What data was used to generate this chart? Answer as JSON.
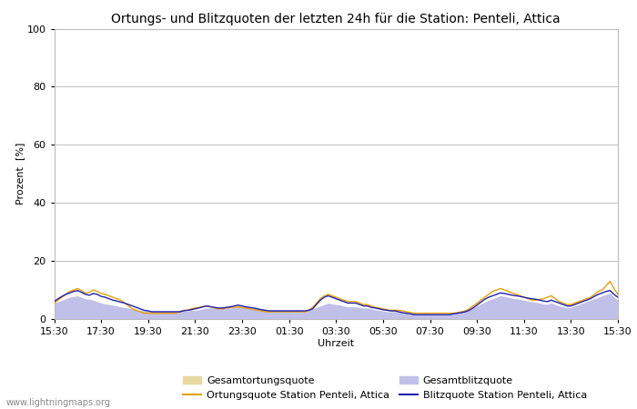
{
  "title": "Ortungs- und Blitzquoten der letzten 24h für die Station: Penteli, Attica",
  "xlabel": "Uhrzeit",
  "ylabel": "Prozent  [%]",
  "ylim": [
    0,
    100
  ],
  "yticks": [
    0,
    20,
    40,
    60,
    80,
    100
  ],
  "xtick_labels": [
    "15:30",
    "17:30",
    "19:30",
    "21:30",
    "23:30",
    "01:30",
    "03:30",
    "05:30",
    "07:30",
    "09:30",
    "11:30",
    "13:30",
    "15:30"
  ],
  "color_gesamtortung": "#e8d8a0",
  "color_ortung": "#e8a000",
  "color_gesamtblitz": "#c0c0e8",
  "color_blitz": "#2020b0",
  "legend_labels": [
    "Gesamtortungsquote",
    "Ortungsquote Station Penteli, Attica",
    "Gesamtblitzquote",
    "Blitzquote Station Penteli, Attica"
  ],
  "watermark": "www.lightningmaps.org",
  "background_color": "#ffffff",
  "plot_bg_color": "#ffffff",
  "grid_color": "#c0c0c0",
  "title_fontsize": 10,
  "label_fontsize": 8,
  "tick_fontsize": 8,
  "n_points": 145,
  "gesamtortung": [
    3.5,
    4.0,
    4.2,
    4.5,
    4.8,
    5.0,
    5.2,
    4.8,
    4.5,
    4.2,
    4.0,
    3.8,
    3.5,
    3.2,
    3.0,
    2.8,
    2.5,
    2.2,
    2.0,
    1.8,
    1.5,
    1.5,
    1.5,
    1.5,
    1.5,
    1.5,
    1.5,
    1.5,
    1.5,
    1.5,
    1.5,
    1.5,
    1.5,
    1.5,
    1.5,
    1.5,
    1.8,
    2.0,
    2.2,
    2.5,
    2.5,
    2.5,
    2.5,
    2.5,
    2.5,
    2.5,
    2.5,
    2.8,
    2.8,
    2.8,
    2.5,
    2.5,
    2.5,
    2.2,
    2.0,
    2.0,
    2.0,
    2.0,
    2.0,
    2.0,
    2.0,
    2.0,
    2.0,
    2.0,
    2.0,
    2.0,
    2.0,
    2.2,
    2.5,
    2.5,
    2.5,
    2.5,
    2.5,
    2.5,
    2.5,
    2.5,
    2.5,
    2.5,
    2.5,
    2.5,
    2.5,
    2.5,
    2.5,
    2.5,
    2.5,
    2.5,
    2.5,
    2.5,
    2.2,
    2.0,
    1.8,
    1.5,
    1.5,
    1.5,
    1.5,
    1.5,
    1.5,
    1.5,
    1.5,
    1.5,
    1.5,
    1.5,
    1.5,
    1.5,
    1.5,
    1.8,
    2.0,
    2.2,
    2.5,
    2.8,
    3.0,
    3.2,
    3.5,
    3.8,
    4.0,
    4.2,
    4.5,
    4.8,
    5.0,
    5.2,
    5.5,
    5.2,
    5.0,
    4.8,
    4.5,
    4.2,
    4.0,
    3.8,
    3.5,
    3.2,
    3.0,
    2.8,
    2.8,
    3.0,
    3.2,
    3.5,
    3.8,
    4.0,
    4.2,
    4.5,
    4.8,
    5.0,
    5.2,
    4.5,
    4.0
  ],
  "ortungsquote": [
    5.5,
    6.5,
    7.5,
    8.5,
    9.5,
    10.0,
    10.5,
    9.8,
    8.8,
    9.2,
    10.0,
    9.5,
    8.8,
    8.5,
    8.0,
    7.5,
    7.0,
    6.5,
    5.5,
    4.5,
    3.5,
    3.0,
    2.5,
    2.0,
    2.0,
    2.0,
    2.0,
    2.0,
    2.0,
    2.0,
    2.0,
    2.0,
    2.5,
    3.0,
    3.0,
    3.5,
    3.8,
    4.0,
    4.2,
    4.5,
    4.2,
    3.8,
    3.5,
    3.5,
    3.8,
    4.0,
    4.0,
    4.2,
    4.0,
    3.8,
    3.5,
    3.2,
    3.0,
    2.8,
    2.5,
    2.5,
    2.5,
    2.5,
    2.5,
    2.5,
    2.5,
    2.5,
    2.5,
    2.5,
    2.5,
    3.0,
    4.0,
    5.5,
    7.0,
    8.0,
    8.5,
    8.0,
    7.5,
    7.0,
    6.5,
    6.0,
    6.0,
    6.0,
    5.5,
    5.0,
    5.0,
    4.5,
    4.0,
    3.8,
    3.5,
    3.2,
    3.0,
    3.0,
    3.0,
    2.8,
    2.5,
    2.2,
    2.0,
    2.0,
    2.0,
    2.0,
    2.0,
    2.0,
    2.0,
    2.0,
    2.0,
    2.0,
    2.0,
    2.2,
    2.5,
    2.8,
    3.5,
    4.5,
    5.5,
    6.5,
    7.5,
    8.5,
    9.5,
    10.0,
    10.5,
    10.0,
    9.5,
    9.0,
    8.5,
    8.0,
    7.5,
    7.0,
    6.5,
    6.5,
    6.8,
    7.0,
    7.5,
    8.0,
    7.0,
    6.0,
    5.5,
    5.0,
    5.0,
    5.5,
    6.0,
    6.5,
    7.0,
    7.5,
    8.5,
    9.5,
    10.0,
    11.5,
    13.0,
    10.5,
    8.5
  ],
  "gesamtblitz": [
    5.5,
    6.0,
    6.5,
    7.0,
    7.5,
    7.8,
    8.0,
    7.5,
    7.0,
    6.8,
    6.5,
    6.0,
    5.5,
    5.2,
    5.0,
    4.8,
    4.5,
    4.2,
    4.0,
    3.8,
    3.5,
    3.2,
    3.0,
    2.8,
    2.8,
    2.8,
    2.8,
    2.8,
    2.8,
    2.8,
    2.8,
    2.8,
    2.8,
    2.8,
    2.8,
    3.0,
    3.0,
    3.2,
    3.5,
    3.8,
    3.8,
    3.8,
    3.8,
    3.8,
    3.8,
    3.8,
    4.0,
    4.2,
    4.2,
    4.0,
    3.8,
    3.8,
    3.8,
    3.5,
    3.2,
    3.2,
    3.2,
    3.2,
    3.2,
    3.2,
    3.2,
    3.2,
    3.2,
    3.2,
    3.0,
    3.2,
    3.5,
    4.0,
    4.5,
    5.0,
    5.5,
    5.2,
    5.0,
    4.8,
    4.5,
    4.2,
    4.2,
    4.2,
    4.0,
    3.8,
    3.8,
    3.5,
    3.2,
    3.0,
    2.8,
    2.5,
    2.5,
    2.5,
    2.5,
    2.2,
    2.0,
    1.8,
    1.8,
    1.8,
    1.8,
    1.8,
    1.8,
    1.8,
    1.8,
    1.8,
    1.8,
    1.8,
    2.0,
    2.2,
    2.5,
    2.8,
    3.2,
    3.8,
    4.5,
    5.2,
    5.8,
    6.5,
    7.0,
    7.5,
    8.0,
    7.8,
    7.5,
    7.2,
    7.0,
    6.8,
    6.5,
    6.2,
    6.0,
    5.8,
    5.5,
    5.2,
    5.0,
    5.5,
    5.0,
    4.5,
    4.2,
    4.0,
    4.0,
    4.5,
    5.0,
    5.5,
    6.0,
    6.5,
    7.0,
    7.5,
    8.0,
    8.5,
    9.0,
    7.5,
    6.5
  ],
  "blitzquote": [
    6.0,
    7.0,
    7.8,
    8.5,
    9.0,
    9.5,
    9.8,
    9.2,
    8.5,
    8.2,
    8.8,
    8.5,
    7.8,
    7.5,
    7.0,
    6.5,
    6.2,
    5.8,
    5.5,
    5.0,
    4.5,
    4.0,
    3.5,
    3.0,
    2.8,
    2.5,
    2.5,
    2.5,
    2.5,
    2.5,
    2.5,
    2.5,
    2.5,
    2.8,
    3.0,
    3.2,
    3.5,
    3.8,
    4.2,
    4.5,
    4.2,
    4.0,
    3.8,
    3.8,
    4.0,
    4.2,
    4.5,
    4.8,
    4.5,
    4.2,
    4.0,
    3.8,
    3.5,
    3.2,
    3.0,
    2.8,
    2.8,
    2.8,
    2.8,
    2.8,
    2.8,
    2.8,
    2.8,
    2.8,
    2.8,
    3.0,
    3.5,
    5.0,
    6.5,
    7.5,
    8.0,
    7.5,
    7.0,
    6.5,
    6.0,
    5.5,
    5.5,
    5.5,
    5.0,
    4.5,
    4.5,
    4.0,
    3.8,
    3.5,
    3.2,
    3.0,
    2.8,
    2.8,
    2.5,
    2.2,
    2.0,
    1.8,
    1.5,
    1.5,
    1.5,
    1.5,
    1.5,
    1.5,
    1.5,
    1.5,
    1.5,
    1.5,
    1.8,
    2.0,
    2.2,
    2.5,
    3.0,
    3.8,
    4.8,
    5.8,
    6.8,
    7.5,
    8.0,
    8.5,
    9.0,
    8.8,
    8.5,
    8.2,
    8.0,
    7.8,
    7.5,
    7.2,
    7.0,
    6.8,
    6.5,
    6.2,
    6.0,
    6.5,
    6.0,
    5.5,
    5.0,
    4.5,
    4.5,
    5.0,
    5.5,
    6.0,
    6.5,
    7.0,
    7.8,
    8.5,
    9.0,
    9.5,
    9.8,
    8.5,
    7.5
  ]
}
